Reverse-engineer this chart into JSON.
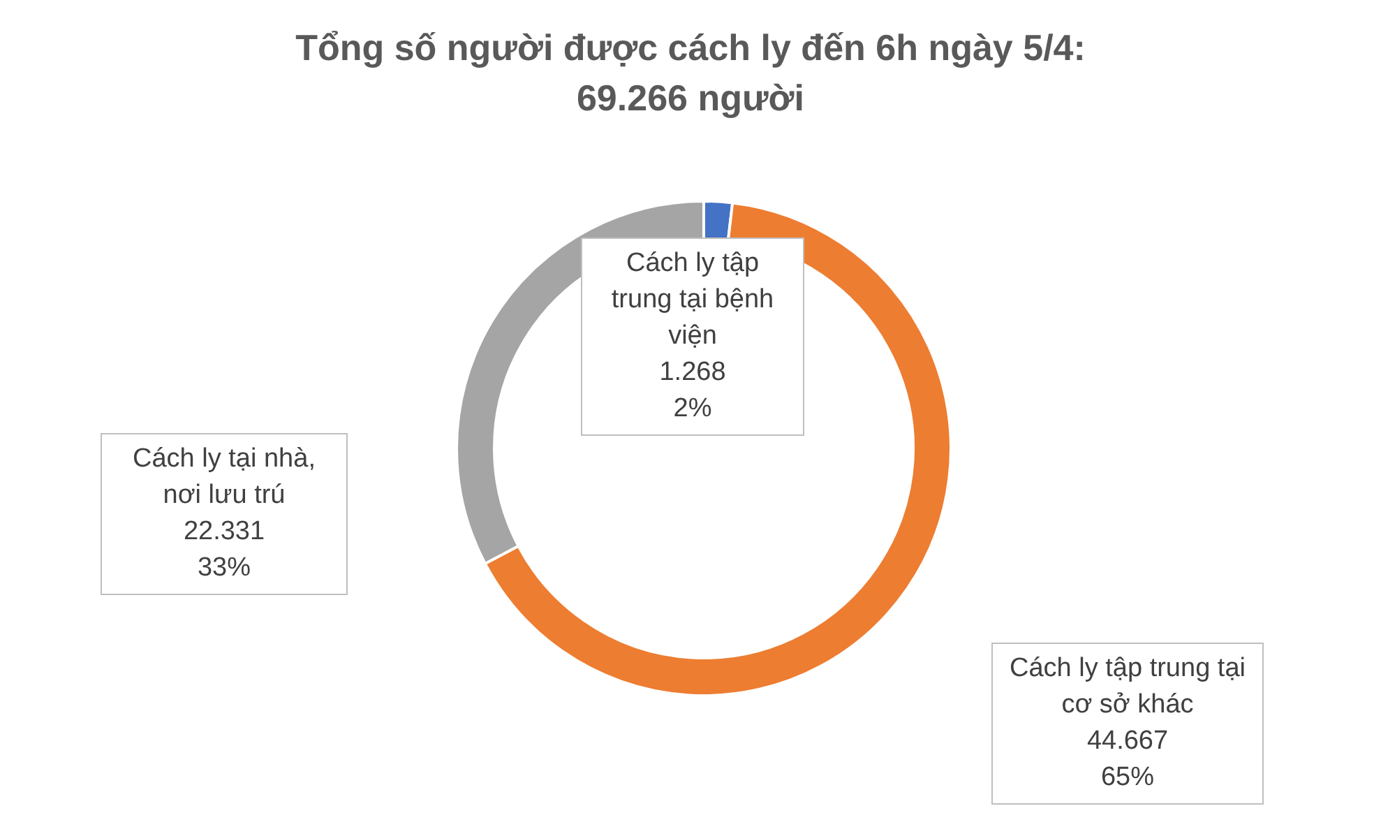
{
  "chart_data": {
    "type": "donut",
    "title": "Tổng số người được cách ly đến 6h ngày 5/4:\n69.266 người",
    "categories": [
      "Cách ly tập trung tại bệnh viện",
      "Cách ly tập trung tại cơ sở khác",
      "Cách ly tại nhà, nơi lưu trú"
    ],
    "values": [
      1268,
      44667,
      22331
    ],
    "colors": [
      "#4472c4",
      "#ed7d31",
      "#a5a5a5"
    ],
    "value_labels": [
      "1.268\n2%",
      "44.667\n65%",
      "22.331\n33%"
    ],
    "legend": false
  }
}
